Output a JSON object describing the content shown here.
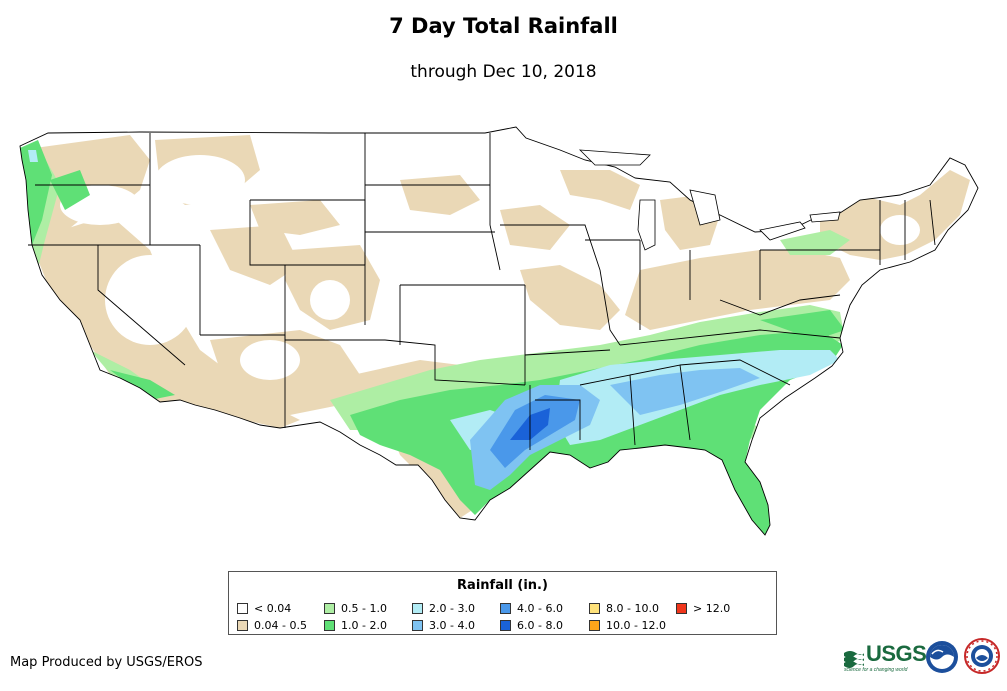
{
  "title": "7 Day Total Rainfall",
  "subtitle": "through Dec 10, 2018",
  "legend": {
    "title": "Rainfall (in.)",
    "items": [
      {
        "label": "< 0.04",
        "color": "#ffffff"
      },
      {
        "label": "0.04 - 0.5",
        "color": "#ead8b6"
      },
      {
        "label": "0.5 - 1.0",
        "color": "#aeeea4"
      },
      {
        "label": "1.0 - 2.0",
        "color": "#5fe076"
      },
      {
        "label": "2.0 - 3.0",
        "color": "#b2ecf5"
      },
      {
        "label": "3.0 - 4.0",
        "color": "#7fc3f2"
      },
      {
        "label": "4.0 - 6.0",
        "color": "#4a98ea"
      },
      {
        "label": "6.0 - 8.0",
        "color": "#1a62d8"
      },
      {
        "label": "8.0 - 10.0",
        "color": "#ffe27a"
      },
      {
        "label": "10.0 - 12.0",
        "color": "#ffa51a"
      },
      {
        "label": "> 12.0",
        "color": "#f0361c"
      }
    ]
  },
  "credit": "Map Produced by USGS/EROS",
  "logos": {
    "usgs_name": "USGS",
    "usgs_tagline": "science for a changing world"
  },
  "icons": [
    "usgs-logo-icon",
    "noaa-logo-icon",
    "nws-logo-icon"
  ]
}
